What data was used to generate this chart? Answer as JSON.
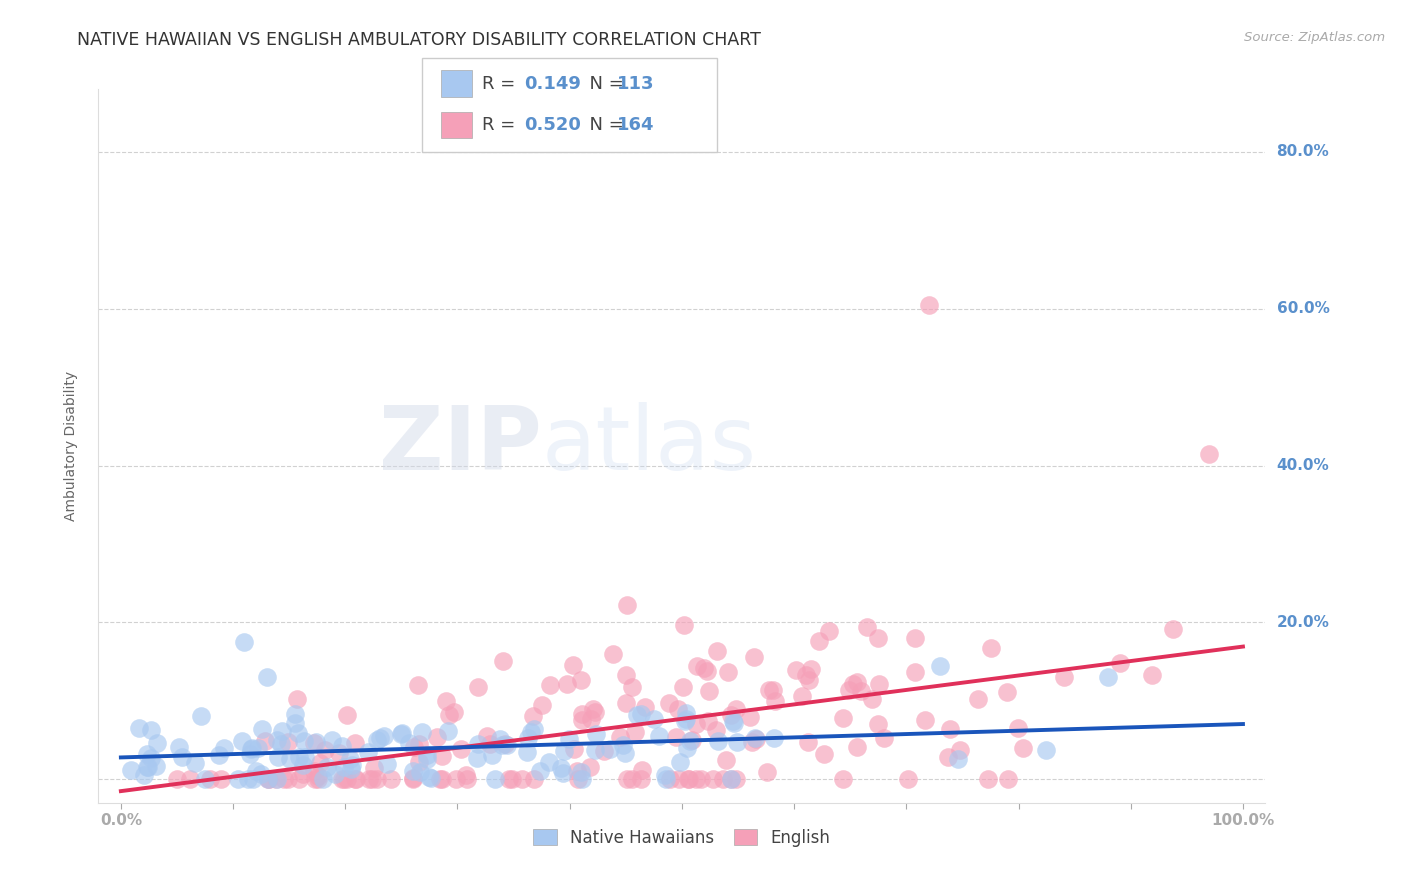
{
  "title": "NATIVE HAWAIIAN VS ENGLISH AMBULATORY DISABILITY CORRELATION CHART",
  "source": "Source: ZipAtlas.com",
  "ylabel": "Ambulatory Disability",
  "xlim": [
    -0.02,
    1.02
  ],
  "ylim": [
    -0.03,
    0.88
  ],
  "watermark_zip": "ZIP",
  "watermark_atlas": "atlas",
  "legend1_R": "0.149",
  "legend1_N": "113",
  "legend2_R": "0.520",
  "legend2_N": "164",
  "blue_color": "#a8c8f0",
  "pink_color": "#f5a0b8",
  "blue_line_color": "#1a55bb",
  "pink_line_color": "#e0305a",
  "background_color": "#ffffff",
  "grid_color": "#cccccc",
  "title_color": "#333333",
  "title_fontsize": 12.5,
  "tick_label_color": "#5a90cc",
  "ytick_right_vals": [
    0.0,
    0.2,
    0.4,
    0.6,
    0.8
  ],
  "ytick_right_labels": [
    "",
    "20.0%",
    "40.0%",
    "60.0%",
    "80.0%"
  ],
  "xtick_vals": [
    0.0,
    0.1,
    0.2,
    0.3,
    0.4,
    0.5,
    0.6,
    0.7,
    0.8,
    0.9,
    1.0
  ],
  "xtick_labels": [
    "0.0%",
    "",
    "",
    "",
    "",
    "",
    "",
    "",
    "",
    "",
    "100.0%"
  ],
  "legend_label1": "Native Hawaiians",
  "legend_label2": "English"
}
